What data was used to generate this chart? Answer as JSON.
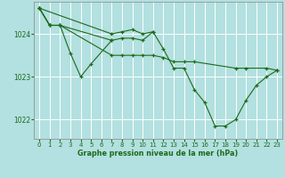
{
  "title": "Graphe pression niveau de la mer (hPa)",
  "background_color": "#b3e0e0",
  "grid_color": "#ffffff",
  "line_color": "#1a6b1a",
  "xlim": [
    -0.5,
    23.5
  ],
  "ylim": [
    1021.55,
    1024.75
  ],
  "yticks": [
    1022,
    1023,
    1024
  ],
  "xticks": [
    0,
    1,
    2,
    3,
    4,
    5,
    6,
    7,
    8,
    9,
    10,
    11,
    12,
    13,
    14,
    15,
    16,
    17,
    18,
    19,
    20,
    21,
    22,
    23
  ],
  "series": [
    {
      "x": [
        0,
        1,
        2,
        7,
        8,
        9,
        10,
        11,
        12,
        13,
        14,
        15,
        19,
        20,
        22,
        23
      ],
      "y": [
        1024.6,
        1024.2,
        1024.2,
        1023.5,
        1023.5,
        1023.5,
        1023.5,
        1023.5,
        1023.45,
        1023.35,
        1023.35,
        1023.35,
        1023.2,
        1023.2,
        1023.2,
        1023.15
      ]
    },
    {
      "x": [
        0,
        1,
        2,
        7,
        8,
        9,
        10,
        11,
        12,
        13,
        14,
        15,
        16,
        17,
        18,
        19,
        20,
        21,
        22,
        23
      ],
      "y": [
        1024.6,
        1024.2,
        1024.2,
        1023.85,
        1023.9,
        1023.9,
        1023.85,
        1024.05,
        1023.65,
        1023.2,
        1023.2,
        1022.7,
        1022.4,
        1021.85,
        1021.85,
        1022.0,
        1022.45,
        1022.8,
        1023.0,
        1023.15
      ]
    },
    {
      "x": [
        0,
        1,
        2,
        3,
        4,
        5,
        7
      ],
      "y": [
        1024.6,
        1024.2,
        1024.2,
        1023.55,
        1023.0,
        1023.3,
        1023.85
      ]
    },
    {
      "x": [
        0,
        7,
        8,
        9,
        10,
        11
      ],
      "y": [
        1024.6,
        1024.0,
        1024.05,
        1024.1,
        1024.0,
        1024.05
      ]
    }
  ]
}
